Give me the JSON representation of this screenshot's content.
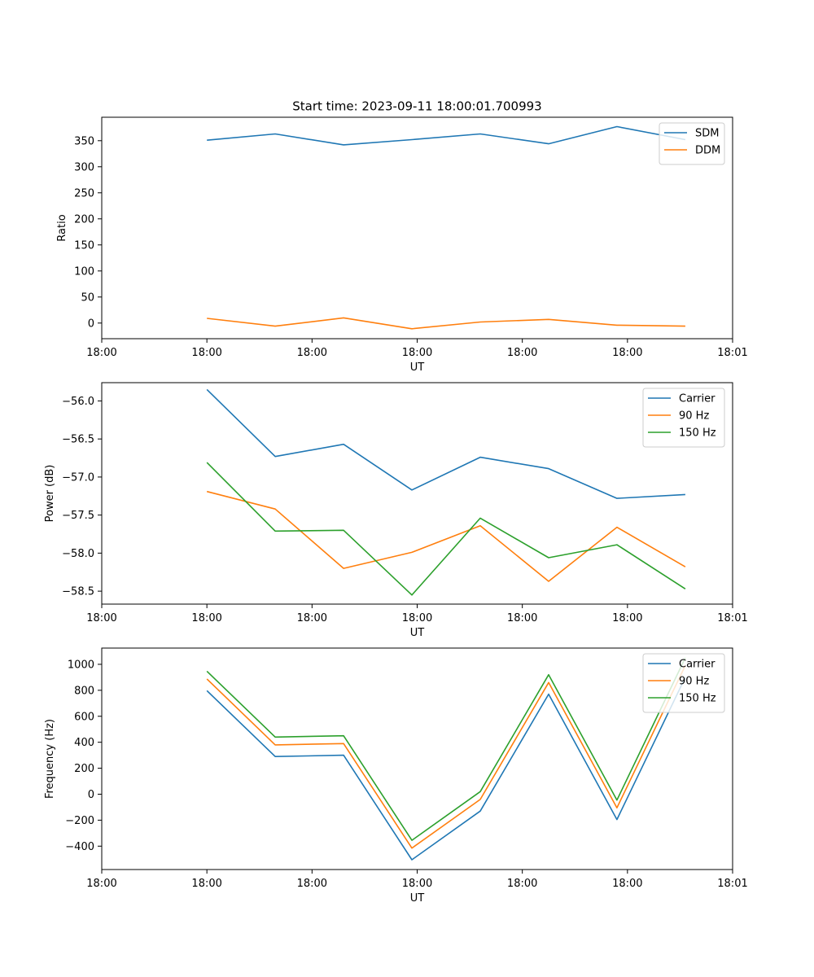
{
  "figure": {
    "title": "Start time: 2023-09-11 18:00:01.700993"
  },
  "colors": {
    "blue": "#1f77b4",
    "orange": "#ff7f0e",
    "green": "#2ca02c"
  },
  "chart_data": [
    {
      "type": "line",
      "title": "Start time: 2023-09-11 18:00:01.700993",
      "xlabel": "UT",
      "ylabel": "Ratio",
      "x": [
        1.0,
        1.65,
        2.3,
        2.95,
        3.6,
        4.25,
        4.9,
        5.55
      ],
      "xlim": [
        0.0,
        6.0
      ],
      "x_ticks": [
        0,
        1,
        2,
        3,
        4,
        5,
        6
      ],
      "x_tick_labels": [
        "18:00",
        "18:00",
        "18:00",
        "18:00",
        "18:00",
        "18:00",
        "18:01"
      ],
      "ylim": [
        -30,
        395
      ],
      "y_ticks": [
        0,
        50,
        100,
        150,
        200,
        250,
        300,
        350
      ],
      "legend": "top-right",
      "series": [
        {
          "name": "SDM",
          "color": "blue",
          "values": [
            351,
            363,
            342,
            352,
            363,
            344,
            377,
            352
          ]
        },
        {
          "name": "DDM",
          "color": "orange",
          "values": [
            9,
            -6,
            10,
            -11,
            2,
            7,
            -4,
            -6
          ]
        }
      ]
    },
    {
      "type": "line",
      "title": "",
      "xlabel": "UT",
      "ylabel": "Power (dB)",
      "x": [
        1.0,
        1.65,
        2.3,
        2.95,
        3.6,
        4.25,
        4.9,
        5.55
      ],
      "xlim": [
        0.0,
        6.0
      ],
      "x_ticks": [
        0,
        1,
        2,
        3,
        4,
        5,
        6
      ],
      "x_tick_labels": [
        "18:00",
        "18:00",
        "18:00",
        "18:00",
        "18:00",
        "18:00",
        "18:01"
      ],
      "ylim": [
        -58.67,
        -55.76
      ],
      "y_ticks": [
        -58.5,
        -58.0,
        -57.5,
        -57.0,
        -56.5,
        -56.0
      ],
      "y_tick_labels": [
        "−58.5",
        "−58.0",
        "−57.5",
        "−57.0",
        "−56.5",
        "−56.0"
      ],
      "legend": "top-right",
      "series": [
        {
          "name": "Carrier",
          "color": "blue",
          "values": [
            -55.85,
            -56.73,
            -56.57,
            -57.17,
            -56.74,
            -56.89,
            -57.28,
            -57.23
          ]
        },
        {
          "name": "90 Hz",
          "color": "orange",
          "values": [
            -57.19,
            -57.42,
            -58.2,
            -57.99,
            -57.64,
            -58.37,
            -57.66,
            -58.18
          ]
        },
        {
          "name": "150 Hz",
          "color": "green",
          "values": [
            -56.81,
            -57.71,
            -57.7,
            -58.55,
            -57.54,
            -58.06,
            -57.89,
            -58.47
          ]
        }
      ]
    },
    {
      "type": "line",
      "title": "",
      "xlabel": "UT",
      "ylabel": "Frequency (Hz)",
      "x": [
        1.0,
        1.65,
        2.3,
        2.95,
        3.6,
        4.25,
        4.9,
        5.55
      ],
      "xlim": [
        0.0,
        6.0
      ],
      "x_ticks": [
        0,
        1,
        2,
        3,
        4,
        5,
        6
      ],
      "x_tick_labels": [
        "18:00",
        "18:00",
        "18:00",
        "18:00",
        "18:00",
        "18:00",
        "18:01"
      ],
      "ylim": [
        -580,
        1125
      ],
      "y_ticks": [
        -400,
        -200,
        0,
        200,
        400,
        600,
        800,
        1000
      ],
      "y_tick_labels": [
        "−400",
        "−200",
        "0",
        "200",
        "400",
        "600",
        "800",
        "1000"
      ],
      "legend": "top-right",
      "series": [
        {
          "name": "Carrier",
          "color": "blue",
          "values": [
            797,
            290,
            300,
            -505,
            -130,
            770,
            -195,
            900
          ]
        },
        {
          "name": "90 Hz",
          "color": "orange",
          "values": [
            887,
            380,
            390,
            -415,
            -40,
            860,
            -105,
            990
          ]
        },
        {
          "name": "150 Hz",
          "color": "green",
          "values": [
            947,
            440,
            450,
            -355,
            20,
            920,
            -45,
            1050
          ]
        }
      ]
    }
  ]
}
